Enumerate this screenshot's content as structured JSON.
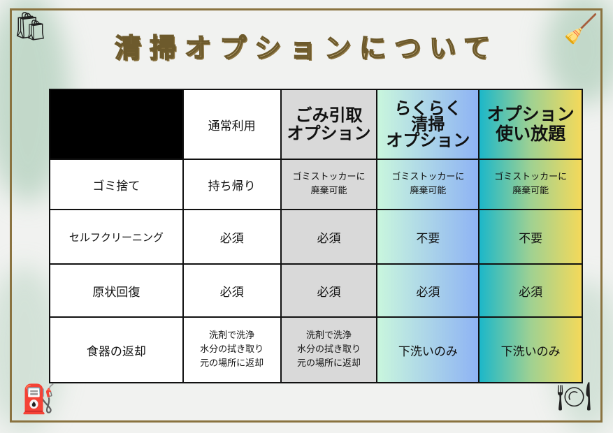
{
  "title": "清掃オプションについて",
  "table": {
    "headers": [
      "",
      "通常利用",
      "ごみ引取\nオプション",
      "らくらく\n清掃\nオプション",
      "オプション\n使い放題"
    ],
    "rows": [
      {
        "label": "ゴミ捨て",
        "cells": [
          "持ち帰り",
          "ゴミストッカーに\n廃棄可能",
          "ゴミストッカーに\n廃棄可能",
          "ゴミストッカーに\n廃棄可能"
        ]
      },
      {
        "label": "セルフクリーニング",
        "cells": [
          "必須",
          "必須",
          "不要",
          "不要"
        ]
      },
      {
        "label": "原状回復",
        "cells": [
          "必須",
          "必須",
          "必須",
          "必須"
        ]
      },
      {
        "label": "食器の返却",
        "cells": [
          "洗剤で洗浄\n水分の拭き取り\n元の場所に返却",
          "洗剤で洗浄\n水分の拭き取り\n元の場所に返却",
          "下洗いのみ",
          "下洗いのみ"
        ]
      }
    ]
  },
  "colors": {
    "frame": "#8a7340",
    "title": "#cdb98a",
    "option1": "#d9d9d9"
  },
  "icons": [
    "garbage-bag-icon",
    "broom-icon",
    "vacuum-cleaner-icon",
    "dish-washing-icon"
  ]
}
